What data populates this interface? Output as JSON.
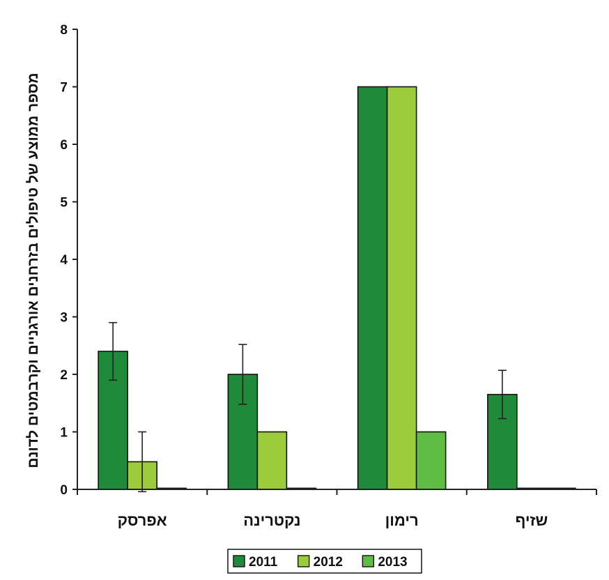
{
  "chart_data": {
    "type": "bar",
    "ylabel": "מספר ממוצע של טיפולים בזרחנים אורגניים וקרבמטים לדונם",
    "xlabel": "",
    "ylim": [
      0,
      8
    ],
    "yticks": [
      0,
      1,
      2,
      3,
      4,
      5,
      6,
      7,
      8
    ],
    "grid": false,
    "legend_position": "bottom",
    "categories": [
      "אפרסק",
      "נקטרינה",
      "רימון",
      "שזיף"
    ],
    "series": [
      {
        "name": "2011",
        "color": "#1f8a3a",
        "values": [
          2.4,
          2.0,
          7.0,
          1.65
        ],
        "errors": [
          0.5,
          0.52,
          null,
          0.42
        ]
      },
      {
        "name": "2012",
        "color": "#9ccb3c",
        "values": [
          0.48,
          1.0,
          7.0,
          0.02
        ],
        "errors": [
          0.52,
          null,
          null,
          null
        ]
      },
      {
        "name": "2013",
        "color": "#5fbc44",
        "values": [
          0.02,
          0.02,
          1.0,
          0.02
        ],
        "errors": [
          null,
          null,
          null,
          null
        ]
      }
    ]
  }
}
